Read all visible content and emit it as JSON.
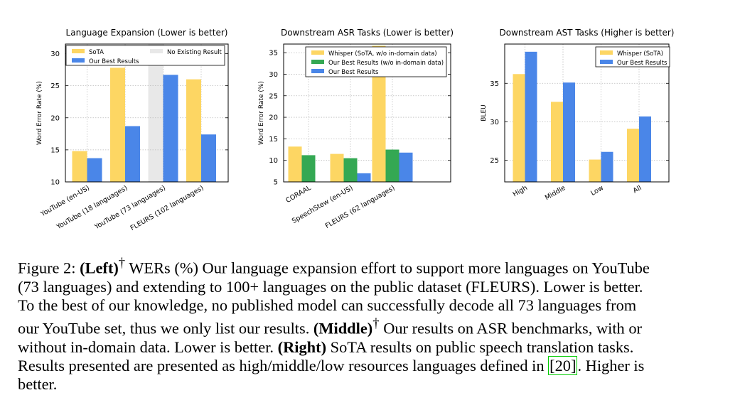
{
  "colors": {
    "sota": "#FDD663",
    "ours": "#4A86E8",
    "ours_no_domain": "#34A853",
    "no_result": "#E8E8E8",
    "grid": "#bbbbbb",
    "ref_box": "#00cc00"
  },
  "chart_data": [
    {
      "type": "bar",
      "title": "Language Expansion (Lower is better)",
      "xlabel": "",
      "ylabel": "Word Error Rate (%)",
      "ylim": [
        10,
        31.5
      ],
      "yticks": [
        10,
        15,
        20,
        25,
        30
      ],
      "grid": true,
      "legend_position": "top",
      "categories": [
        "YouTube (en-US)",
        "YouTube (18 languages)",
        "YouTube (73 languages)",
        "FLEURS (102 languages)"
      ],
      "series": [
        {
          "name": "SoTA",
          "color": "sota",
          "values": [
            14.8,
            27.8,
            null,
            26.0
          ]
        },
        {
          "name": "Our Best Results",
          "color": "ours",
          "values": [
            13.7,
            18.7,
            26.7,
            17.4
          ]
        }
      ],
      "no_result_band": {
        "name": "No Existing Result",
        "category_index": 2,
        "color": "no_result"
      }
    },
    {
      "type": "bar",
      "title": "Downstream ASR Tasks (Lower is better)",
      "xlabel": "",
      "ylabel": "Word Error Rate (%)",
      "ylim": [
        5,
        37
      ],
      "yticks": [
        5,
        10,
        15,
        20,
        25,
        30,
        35
      ],
      "grid": true,
      "legend_position": "top-right",
      "categories": [
        "CORAAL",
        "SpeechStew (en-US)",
        "FLEURS (62 languages)"
      ],
      "series": [
        {
          "name": "Whisper (SoTA, w/o in-domain data)",
          "color": "sota",
          "values": [
            13.2,
            11.5,
            36.6
          ]
        },
        {
          "name": "Our Best Results (w/o in-domain data)",
          "color": "ours_no_domain",
          "values": [
            11.2,
            10.5,
            12.5
          ]
        },
        {
          "name": "Our Best Results",
          "color": "ours",
          "values": [
            null,
            7.0,
            11.8
          ]
        }
      ]
    },
    {
      "type": "bar",
      "title": "Downstream AST Tasks (Higher is better)",
      "xlabel": "",
      "ylabel": "BLEU",
      "ylim": [
        22.2,
        40.1
      ],
      "yticks": [
        25,
        30,
        35
      ],
      "grid": true,
      "legend_position": "top-right",
      "categories": [
        "High",
        "Middle",
        "Low",
        "All"
      ],
      "series": [
        {
          "name": "Whisper (SoTA)",
          "color": "sota",
          "values": [
            36.2,
            32.6,
            25.1,
            29.1
          ]
        },
        {
          "name": "Our Best Results",
          "color": "ours",
          "values": [
            39.1,
            35.1,
            26.1,
            30.7
          ]
        }
      ]
    }
  ],
  "caption": {
    "line1": {
      "prefix": "Figure 2: ",
      "bold1": "(Left)",
      "sup1": "†",
      "text": " WERs (%) Our language expansion effort to support more languages on YouTube"
    },
    "line2": "(73 languages) and extending to 100+ languages on the public dataset (FLEURS). Lower is better.",
    "line3": "To the best of our knowledge, no published model can successfully decode all 73 languages from",
    "line4": {
      "text_before": "our YouTube set, thus we only list our results. ",
      "bold": "(Middle)",
      "sup": "†",
      "text_after": " Our results on ASR benchmarks, with or"
    },
    "line5": {
      "text_before": "without in-domain data. Lower is better. ",
      "bold": "(Right)",
      "text_after": " SoTA results on public speech translation tasks."
    },
    "line6": {
      "text_before": "Results presented are presented as high/middle/low resources languages defined in ",
      "ref_open": "[",
      "ref": "20",
      "ref_close": "]",
      "text_after": ". Higher is"
    },
    "line7": "better."
  }
}
